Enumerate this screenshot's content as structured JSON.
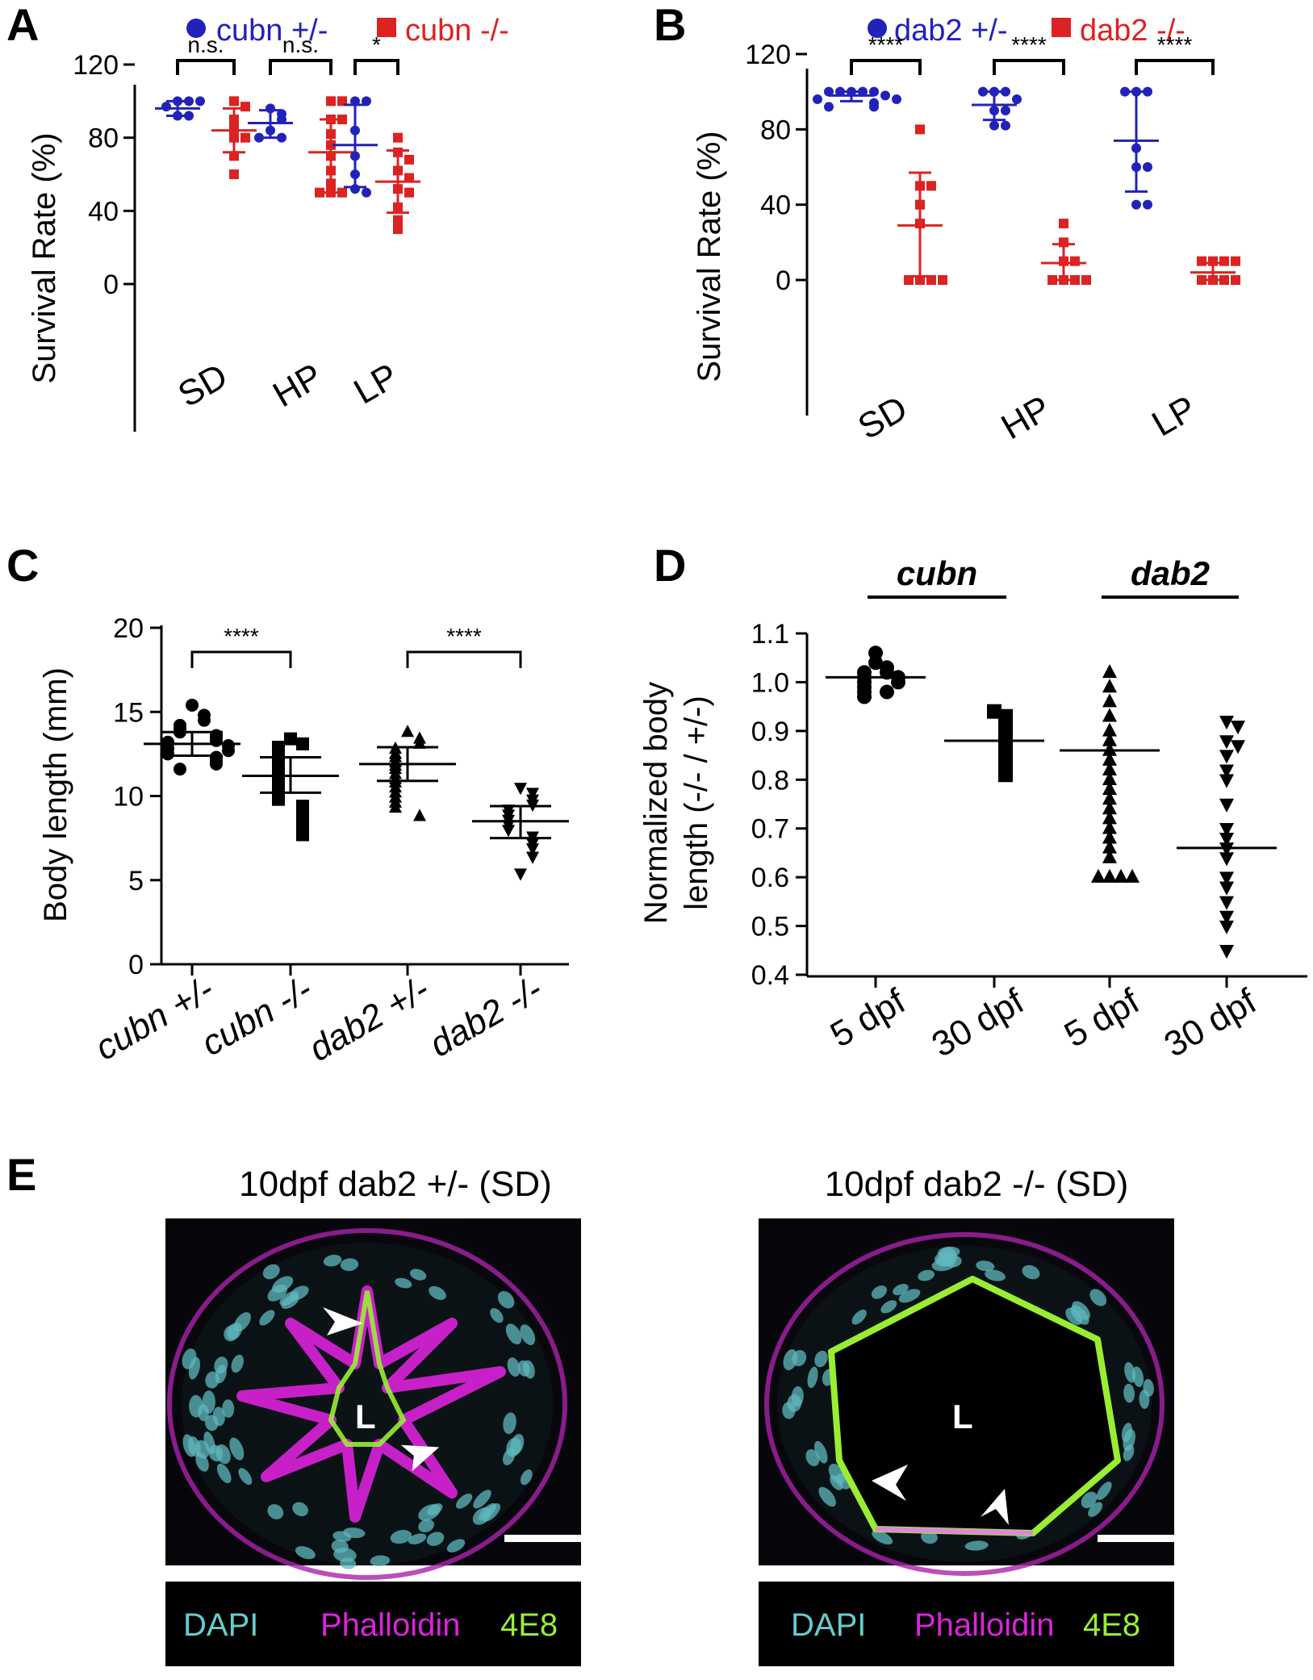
{
  "panels": {
    "A": "A",
    "B": "B",
    "C": "C",
    "D": "D",
    "E": "E"
  },
  "colors": {
    "het": "#2222bb",
    "mut": "#dd2222",
    "black": "#000000",
    "dapi": "#66cccc",
    "phalloidin": "#dd22dd",
    "e48": "#99ee33"
  },
  "chart_data": [
    {
      "panel": "A",
      "type": "scatter",
      "legend": [
        {
          "label": "cubn +/-",
          "marker": "circle",
          "color": "#2222bb"
        },
        {
          "label": "cubn -/-",
          "marker": "square",
          "color": "#dd2222"
        }
      ],
      "ylabel": "Survival Rate (%)",
      "ylim": [
        -20,
        120
      ],
      "yticks": [
        0,
        40,
        80,
        120
      ],
      "categories": [
        "SD",
        "HP",
        "LP"
      ],
      "significance": [
        "n.s.",
        "n.s.",
        "*"
      ],
      "groups": [
        {
          "category": "SD",
          "series": "cubn +/-",
          "points": [
            100,
            100,
            97,
            92,
            92,
            100
          ],
          "mean": 96,
          "sd": [
            92,
            100
          ]
        },
        {
          "category": "SD",
          "series": "cubn -/-",
          "points": [
            100,
            97,
            90,
            85,
            80,
            80,
            70,
            60
          ],
          "mean": 84,
          "sd": [
            72,
            96
          ]
        },
        {
          "category": "HP",
          "series": "cubn +/-",
          "points": [
            96,
            93,
            90,
            84,
            80,
            80
          ],
          "mean": 88,
          "sd": [
            80,
            95
          ]
        },
        {
          "category": "HP",
          "series": "cubn -/-",
          "points": [
            100,
            100,
            90,
            90,
            82,
            76,
            70,
            62,
            55,
            50,
            50,
            50
          ],
          "mean": 72,
          "sd": [
            50,
            90
          ]
        },
        {
          "category": "LP",
          "series": "cubn +/-",
          "points": [
            100,
            100,
            84,
            70,
            60,
            52,
            50
          ],
          "mean": 76,
          "sd": [
            53,
            98
          ]
        },
        {
          "category": "LP",
          "series": "cubn -/-",
          "points": [
            80,
            72,
            68,
            62,
            58,
            52,
            50,
            42,
            35,
            30
          ],
          "mean": 56,
          "sd": [
            39,
            73
          ]
        }
      ]
    },
    {
      "panel": "B",
      "type": "scatter",
      "legend": [
        {
          "label": "dab2 +/-",
          "marker": "circle",
          "color": "#2222bb"
        },
        {
          "label": "dab2 -/-",
          "marker": "square",
          "color": "#dd2222"
        }
      ],
      "ylabel": "Survival Rate (%)",
      "ylim": [
        -20,
        120
      ],
      "yticks": [
        0,
        40,
        80,
        120
      ],
      "categories": [
        "SD",
        "HP",
        "LP"
      ],
      "significance": [
        "****",
        "****",
        "****"
      ],
      "groups": [
        {
          "category": "SD",
          "series": "dab2 +/-",
          "points": [
            100,
            100,
            100,
            100,
            100,
            98,
            96,
            96,
            94,
            92,
            92
          ],
          "mean": 98,
          "sd": [
            95,
            100
          ]
        },
        {
          "category": "SD",
          "series": "dab2 -/-",
          "points": [
            80,
            50,
            50,
            40,
            30,
            0,
            0,
            0,
            0
          ],
          "mean": 29,
          "sd": [
            2,
            57
          ]
        },
        {
          "category": "HP",
          "series": "dab2 +/-",
          "points": [
            100,
            100,
            100,
            96,
            90,
            90,
            82,
            82
          ],
          "mean": 93,
          "sd": [
            85,
            100
          ]
        },
        {
          "category": "HP",
          "series": "dab2 -/-",
          "points": [
            30,
            20,
            10,
            10,
            0,
            0,
            0,
            0
          ],
          "mean": 9,
          "sd": [
            0,
            19
          ]
        },
        {
          "category": "LP",
          "series": "dab2 +/-",
          "points": [
            100,
            100,
            100,
            70,
            60,
            60,
            40,
            40
          ],
          "mean": 74,
          "sd": [
            47,
            100
          ]
        },
        {
          "category": "LP",
          "series": "dab2 -/-",
          "points": [
            10,
            10,
            10,
            10,
            0,
            0,
            0,
            0
          ],
          "mean": 4,
          "sd": [
            0,
            9
          ]
        }
      ]
    },
    {
      "panel": "C",
      "type": "scatter",
      "ylabel": "Body length (mm)",
      "ylim": [
        0,
        20
      ],
      "yticks": [
        0,
        5,
        10,
        15,
        20
      ],
      "categories": [
        "cubn +/-",
        "cubn -/-",
        "dab2 +/-",
        "dab2 -/-"
      ],
      "markers": [
        "circle",
        "square",
        "triangle-up",
        "triangle-down"
      ],
      "significance": [
        {
          "between": [
            "cubn +/-",
            "cubn -/-"
          ],
          "label": "****"
        },
        {
          "between": [
            "dab2 +/-",
            "dab2 -/-"
          ],
          "label": "****"
        }
      ],
      "groups": [
        {
          "category": "cubn +/-",
          "mean": 13.1,
          "sd": [
            12.4,
            13.8
          ],
          "points": [
            15.4,
            14.8,
            14.5,
            14.2,
            14.0,
            13.8,
            13.6,
            13.5,
            13.3,
            13.2,
            13.1,
            13.0,
            12.8,
            12.7,
            12.5,
            12.3,
            12.1,
            11.9,
            11.6
          ]
        },
        {
          "category": "cubn -/-",
          "mean": 11.2,
          "sd": [
            10.2,
            12.3
          ],
          "points": [
            13.4,
            13.1,
            12.9,
            12.6,
            12.3,
            12.0,
            11.7,
            11.5,
            11.2,
            11.0,
            10.7,
            10.4,
            10.1,
            9.8,
            9.4,
            9.0,
            8.6,
            8.2,
            7.7
          ]
        },
        {
          "category": "dab2 +/-",
          "mean": 11.9,
          "sd": [
            10.9,
            12.9
          ],
          "points": [
            13.8,
            13.4,
            13.1,
            12.8,
            12.5,
            12.3,
            12.0,
            11.8,
            11.6,
            11.3,
            11.0,
            10.8,
            10.5,
            10.2,
            9.9,
            9.6,
            9.3,
            8.8
          ]
        },
        {
          "category": "dab2 -/-",
          "mean": 8.5,
          "sd": [
            7.5,
            9.4
          ],
          "points": [
            10.5,
            10.2,
            9.8,
            9.5,
            9.2,
            8.9,
            8.6,
            8.3,
            8.0,
            7.6,
            7.2,
            6.9,
            6.4,
            5.4
          ]
        }
      ]
    },
    {
      "panel": "D",
      "type": "scatter",
      "ylabel": "Normalized body length (-/- / +/-)",
      "ylim": [
        0.4,
        1.1
      ],
      "yticks": [
        0.4,
        0.5,
        0.6,
        0.7,
        0.8,
        0.9,
        1.0,
        1.1
      ],
      "categories": [
        "5 dpf",
        "30 dpf",
        "5 dpf",
        "30 dpf"
      ],
      "gene_groups": [
        {
          "label": "cubn",
          "categories": [
            0,
            1
          ]
        },
        {
          "label": "dab2",
          "categories": [
            2,
            3
          ]
        }
      ],
      "markers": [
        "circle",
        "square",
        "triangle-up",
        "triangle-down"
      ],
      "groups": [
        {
          "category": "5 dpf",
          "gene": "cubn",
          "median": 1.01,
          "points": [
            1.06,
            1.04,
            1.03,
            1.02,
            1.02,
            1.01,
            1.01,
            1.0,
            1.0,
            0.99,
            0.98,
            0.98,
            0.97
          ]
        },
        {
          "category": "30 dpf",
          "gene": "cubn",
          "median": 0.88,
          "points": [
            0.94,
            0.93,
            0.92,
            0.91,
            0.9,
            0.89,
            0.88,
            0.87,
            0.86,
            0.85,
            0.84,
            0.83,
            0.82,
            0.81
          ]
        },
        {
          "category": "5 dpf",
          "gene": "dab2",
          "median": 0.86,
          "points": [
            1.02,
            0.99,
            0.96,
            0.93,
            0.9,
            0.88,
            0.86,
            0.84,
            0.82,
            0.8,
            0.78,
            0.76,
            0.74,
            0.72,
            0.7,
            0.68,
            0.66,
            0.64,
            0.6,
            0.6,
            0.6,
            0.6
          ]
        },
        {
          "category": "30 dpf",
          "gene": "dab2",
          "median": 0.66,
          "points": [
            0.92,
            0.91,
            0.88,
            0.87,
            0.85,
            0.82,
            0.8,
            0.75,
            0.7,
            0.68,
            0.66,
            0.64,
            0.6,
            0.58,
            0.55,
            0.52,
            0.5,
            0.45
          ]
        }
      ]
    }
  ],
  "microscopy": {
    "left": {
      "title": "10dpf dab2 +/- (SD)",
      "lumen_label": "L",
      "legend": [
        "DAPI",
        "Phalloidin",
        "4E8"
      ]
    },
    "right": {
      "title": "10dpf dab2 -/- (SD)",
      "lumen_label": "L",
      "legend": [
        "DAPI",
        "Phalloidin",
        "4E8"
      ]
    }
  }
}
